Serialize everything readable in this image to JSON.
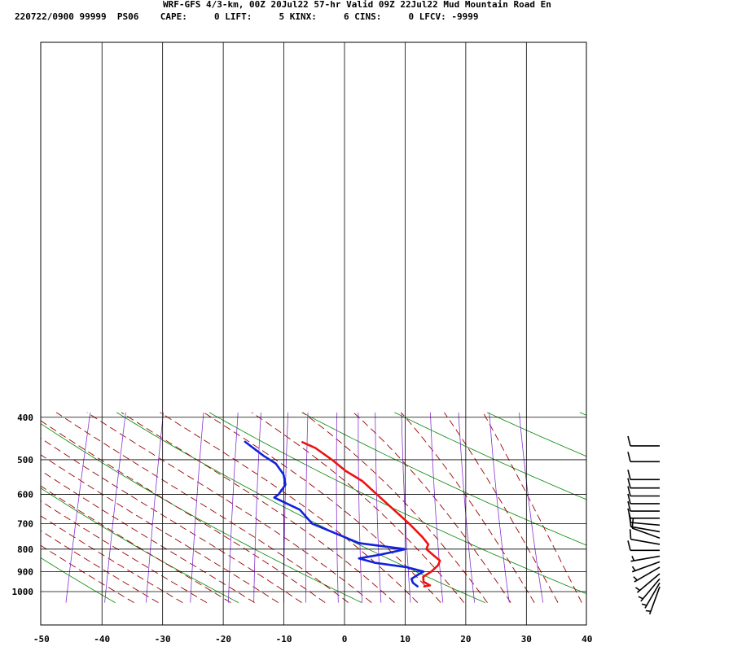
{
  "header": {
    "line1": "WRF-GFS 4/3-km, 00Z 20Jul22 57-hr Valid 09Z 22Jul22 Mud Mountain Road En",
    "line2": "220722/0900 99999  PS06    CAPE:     0 LIFT:     5 KINX:     6 CINS:     0 LFCV: -9999"
  },
  "chart_data": {
    "type": "line",
    "subtype": "skew-t log-p sounding",
    "xlim": [
      -50,
      40
    ],
    "x_ticks": [
      -50,
      -40,
      -30,
      -20,
      -10,
      0,
      10,
      20,
      30,
      40
    ],
    "x_tick_labels": [
      "-50",
      "-40",
      "-30",
      "-20",
      "-10",
      "0",
      "10",
      "20",
      "30",
      "40"
    ],
    "y_axis": "pressure (log scale, inverted)",
    "ylim": [
      1040,
      400
    ],
    "y_ticks": [
      400,
      500,
      600,
      700,
      800,
      900,
      1000
    ],
    "y_tick_labels": [
      "400",
      "500",
      "600",
      "700",
      "800",
      "900",
      "1000"
    ],
    "grid": true,
    "colors": {
      "temperature": "#ee1111",
      "dewpoint": "#1122dd",
      "dry_adiabats": "#008800",
      "moist_adiabats": "#990000",
      "mixing_ratio": "#8833cc",
      "barbs": "#000000"
    },
    "series": [
      {
        "values": [
          {
            "p": 973,
            "t": 10.6
          },
          {
            "p": 968,
            "t": 11.5
          },
          {
            "p": 950,
            "t": 10.2
          },
          {
            "p": 925,
            "t": 9.8
          },
          {
            "p": 900,
            "t": 10.8
          },
          {
            "p": 870,
            "t": 11.5
          },
          {
            "p": 850,
            "t": 11.5
          },
          {
            "p": 825,
            "t": 10.0
          },
          {
            "p": 800,
            "t": 8.5
          },
          {
            "p": 780,
            "t": 8.5
          },
          {
            "p": 750,
            "t": 7.0
          },
          {
            "p": 700,
            "t": 4.0
          },
          {
            "p": 650,
            "t": 0.5
          },
          {
            "p": 610,
            "t": -2.5
          },
          {
            "p": 560,
            "t": -6.5
          },
          {
            "p": 530,
            "t": -10.0
          },
          {
            "p": 500,
            "t": -13.0
          },
          {
            "p": 470,
            "t": -16.5
          },
          {
            "p": 456,
            "t": -19.0
          }
        ]
      },
      {
        "values": [
          {
            "p": 973,
            "t": 9.5
          },
          {
            "p": 955,
            "t": 8.5
          },
          {
            "p": 935,
            "t": 8.0
          },
          {
            "p": 910,
            "t": 9.0
          },
          {
            "p": 900,
            "t": 9.5
          },
          {
            "p": 880,
            "t": 6.5
          },
          {
            "p": 860,
            "t": 1.0
          },
          {
            "p": 840,
            "t": -2.0
          },
          {
            "p": 825,
            "t": 1.0
          },
          {
            "p": 810,
            "t": 3.5
          },
          {
            "p": 800,
            "t": 5.0
          },
          {
            "p": 775,
            "t": -3.0
          },
          {
            "p": 700,
            "t": -12.0
          },
          {
            "p": 650,
            "t": -15.0
          },
          {
            "p": 610,
            "t": -20.0
          },
          {
            "p": 600,
            "t": -19.5
          },
          {
            "p": 570,
            "t": -19.0
          },
          {
            "p": 540,
            "t": -20.0
          },
          {
            "p": 510,
            "t": -22.0
          },
          {
            "p": 490,
            "t": -24.5
          },
          {
            "p": 455,
            "t": -28.5
          }
        ]
      }
    ],
    "wind_barbs": [
      {
        "p": 975,
        "dir": 200,
        "spd": 5
      },
      {
        "p": 955,
        "dir": 210,
        "spd": 5
      },
      {
        "p": 935,
        "dir": 220,
        "spd": 5
      },
      {
        "p": 910,
        "dir": 230,
        "spd": 5
      },
      {
        "p": 880,
        "dir": 240,
        "spd": 5
      },
      {
        "p": 855,
        "dir": 250,
        "spd": 5
      },
      {
        "p": 830,
        "dir": 260,
        "spd": 5
      },
      {
        "p": 805,
        "dir": 270,
        "spd": 10
      },
      {
        "p": 780,
        "dir": 280,
        "spd": 10
      },
      {
        "p": 755,
        "dir": 290,
        "spd": 10
      },
      {
        "p": 730,
        "dir": 280,
        "spd": 10
      },
      {
        "p": 705,
        "dir": 275,
        "spd": 10
      },
      {
        "p": 680,
        "dir": 270,
        "spd": 10
      },
      {
        "p": 655,
        "dir": 270,
        "spd": 10
      },
      {
        "p": 630,
        "dir": 270,
        "spd": 10
      },
      {
        "p": 605,
        "dir": 270,
        "spd": 10
      },
      {
        "p": 580,
        "dir": 270,
        "spd": 10
      },
      {
        "p": 555,
        "dir": 270,
        "spd": 10
      },
      {
        "p": 505,
        "dir": 270,
        "spd": 10
      },
      {
        "p": 465,
        "dir": 270,
        "spd": 10
      }
    ]
  }
}
